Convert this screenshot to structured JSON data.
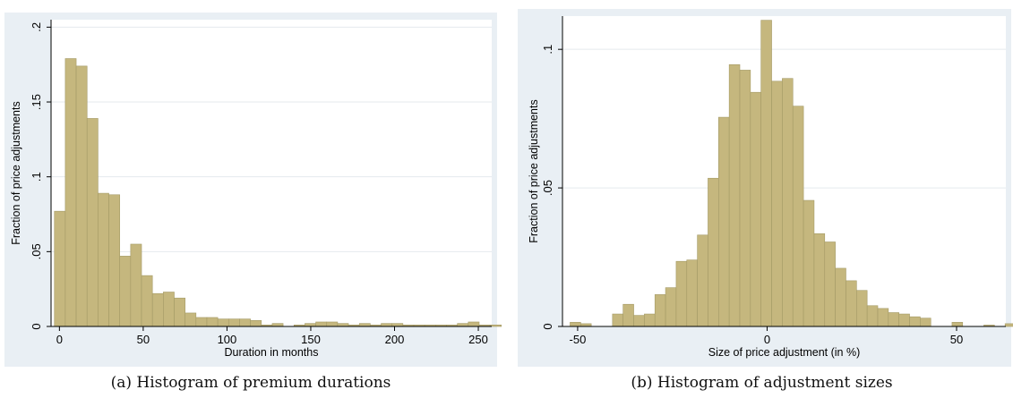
{
  "colors": {
    "frame_bg": "#e9eff4",
    "plot_bg": "#ffffff",
    "bar_fill": "#c5b77e",
    "bar_edge": "#a49a66",
    "grid": "#e5eaee"
  },
  "chart_data": [
    {
      "type": "bar",
      "title": "",
      "caption": "(a) Histogram of premium durations",
      "xlabel": "Duration in months",
      "ylabel": "Fraction of price adjustments",
      "xlim": [
        -5,
        258
      ],
      "ylim": [
        0,
        0.205
      ],
      "x_ticks": [
        0,
        50,
        100,
        150,
        200,
        250
      ],
      "x_tick_labels": [
        "0",
        "50",
        "100",
        "150",
        "200",
        "250"
      ],
      "y_ticks": [
        0,
        0.05,
        0.1,
        0.15,
        0.2
      ],
      "y_tick_labels": [
        "0",
        ".05",
        ".1",
        ".15",
        ".2"
      ],
      "grid": true,
      "bin_start": -3,
      "bin_width": 6.5,
      "values": [
        0.077,
        0.179,
        0.174,
        0.139,
        0.089,
        0.088,
        0.047,
        0.055,
        0.034,
        0.022,
        0.023,
        0.019,
        0.009,
        0.006,
        0.006,
        0.005,
        0.005,
        0.005,
        0.004,
        0.001,
        0.002,
        0,
        0.001,
        0.002,
        0.003,
        0.003,
        0.002,
        0.001,
        0.002,
        0.001,
        0.002,
        0.002,
        0.001,
        0.001,
        0.001,
        0.001,
        0.001,
        0.002,
        0.003,
        0.001,
        0.001,
        0.001
      ]
    },
    {
      "type": "bar",
      "title": "",
      "caption": "(b) Histogram of adjustment sizes",
      "xlabel": "Size of price adjustment (in %)",
      "ylabel": "Fraction of price adjustments",
      "xlim": [
        -54,
        63
      ],
      "ylim": [
        0,
        0.112
      ],
      "x_ticks": [
        -50,
        0,
        50
      ],
      "x_tick_labels": [
        "-50",
        "0",
        "50"
      ],
      "y_ticks": [
        0,
        0.05,
        0.1
      ],
      "y_tick_labels": [
        "0",
        ".05",
        ".1"
      ],
      "grid": true,
      "bin_start": -52,
      "bin_width": 2.8,
      "values": [
        0.0015,
        0.001,
        0,
        0,
        0.0045,
        0.008,
        0.004,
        0.0045,
        0.0115,
        0.014,
        0.0235,
        0.024,
        0.033,
        0.0535,
        0.0755,
        0.0945,
        0.0925,
        0.0845,
        0.1105,
        0.0885,
        0.0895,
        0.0795,
        0.0455,
        0.0335,
        0.0305,
        0.021,
        0.0165,
        0.013,
        0.0075,
        0.0065,
        0.005,
        0.0045,
        0.0035,
        0.003,
        0,
        0,
        0.0015,
        0,
        0,
        0.0005,
        0,
        0.001
      ]
    }
  ]
}
